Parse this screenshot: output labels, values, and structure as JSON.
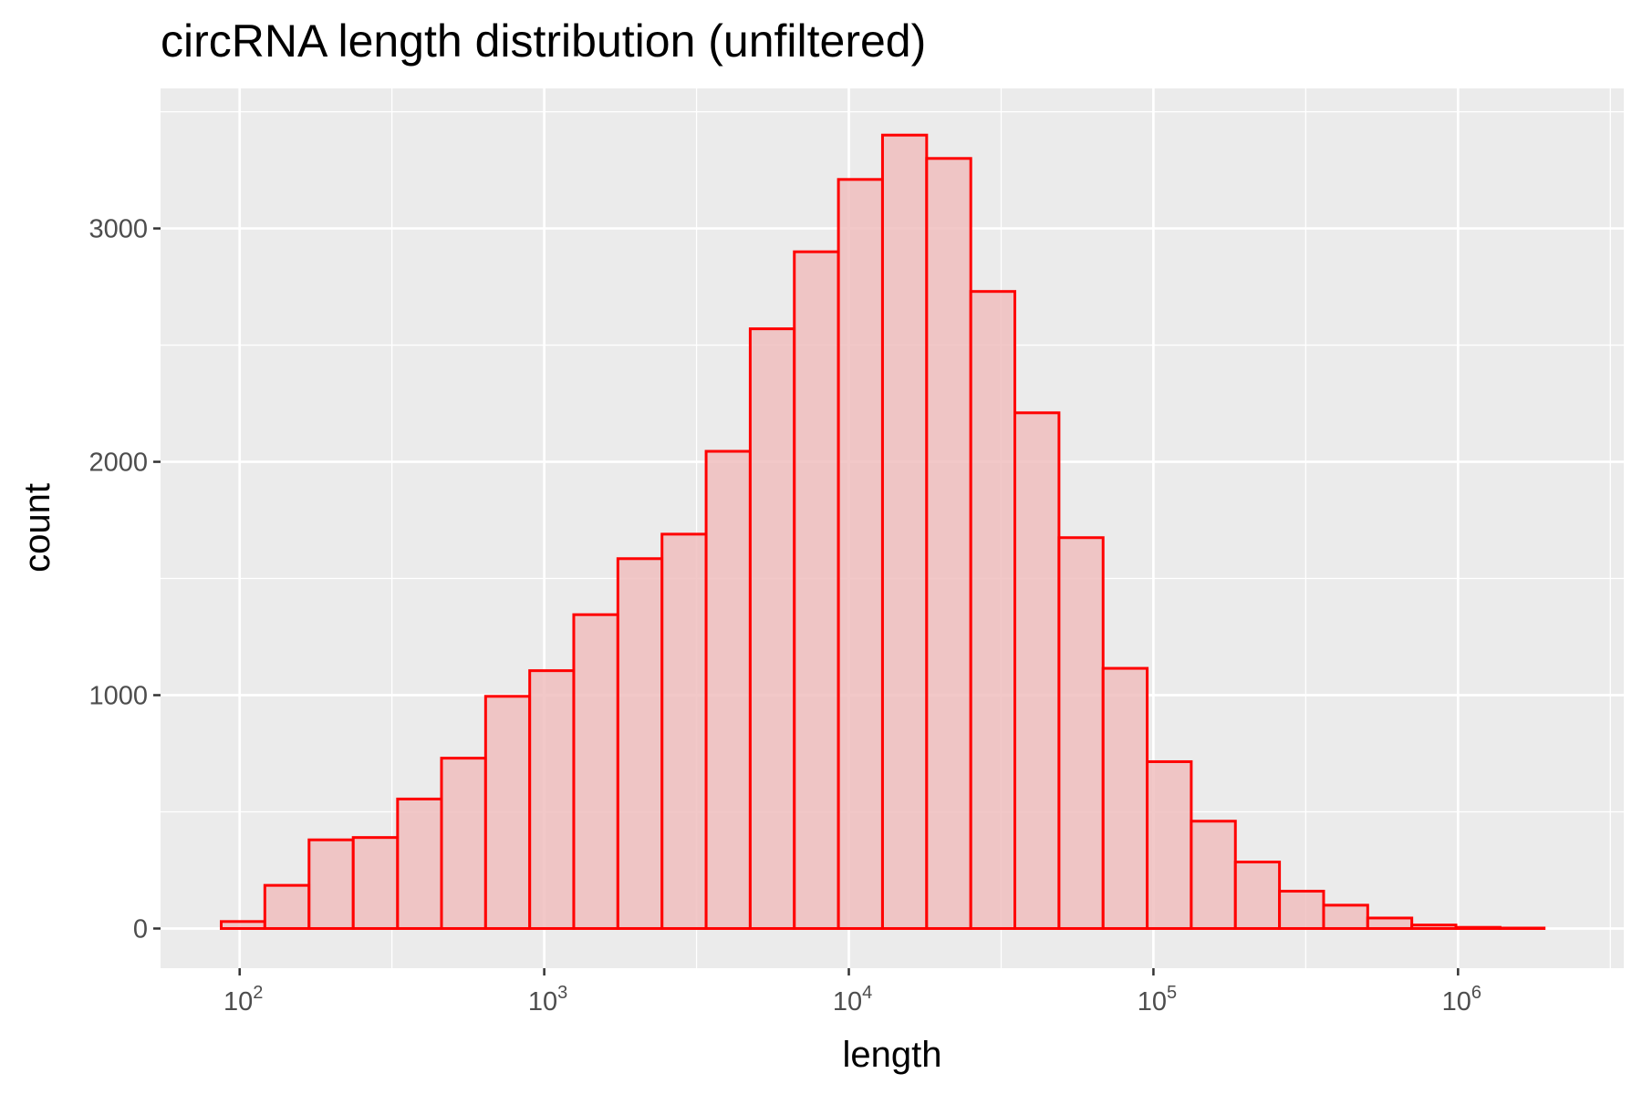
{
  "chart_data": {
    "type": "bar",
    "title": "circRNA length distribution (unfiltered)",
    "xlabel": "length",
    "ylabel": "count",
    "x_scale": "log10",
    "xlim": [
      55,
      3500000
    ],
    "ylim": [
      -170,
      3600
    ],
    "grid": true,
    "fill_color": "#f0bebe",
    "outline_color": "#ff0000",
    "panel_color": "#ebebeb",
    "gridline_color": "#ffffff",
    "x_ticks": [
      {
        "value": 100,
        "base": "10",
        "exp": "2"
      },
      {
        "value": 1000,
        "base": "10",
        "exp": "3"
      },
      {
        "value": 10000,
        "base": "10",
        "exp": "4"
      },
      {
        "value": 100000,
        "base": "10",
        "exp": "5"
      },
      {
        "value": 1000000,
        "base": "10",
        "exp": "6"
      }
    ],
    "y_ticks": [
      {
        "value": 0,
        "label": "0"
      },
      {
        "value": 1000,
        "label": "1000"
      },
      {
        "value": 2000,
        "label": "2000"
      },
      {
        "value": 3000,
        "label": "3000"
      }
    ],
    "bins": [
      {
        "start": 87,
        "end": 121,
        "count": 30
      },
      {
        "start": 121,
        "end": 169,
        "count": 185
      },
      {
        "start": 169,
        "end": 236,
        "count": 380
      },
      {
        "start": 236,
        "end": 330,
        "count": 390
      },
      {
        "start": 330,
        "end": 460,
        "count": 555
      },
      {
        "start": 460,
        "end": 642,
        "count": 730
      },
      {
        "start": 642,
        "end": 896,
        "count": 995
      },
      {
        "start": 896,
        "end": 1250,
        "count": 1105
      },
      {
        "start": 1250,
        "end": 1745,
        "count": 1345
      },
      {
        "start": 1745,
        "end": 2436,
        "count": 1585
      },
      {
        "start": 2436,
        "end": 3400,
        "count": 1690
      },
      {
        "start": 3400,
        "end": 4745,
        "count": 2045
      },
      {
        "start": 4745,
        "end": 6623,
        "count": 2570
      },
      {
        "start": 6623,
        "end": 9244,
        "count": 2900
      },
      {
        "start": 9244,
        "end": 12900,
        "count": 3210
      },
      {
        "start": 12900,
        "end": 18010,
        "count": 3400
      },
      {
        "start": 18010,
        "end": 25140,
        "count": 3300
      },
      {
        "start": 25140,
        "end": 35080,
        "count": 2730
      },
      {
        "start": 35080,
        "end": 48970,
        "count": 2210
      },
      {
        "start": 48970,
        "end": 68350,
        "count": 1675
      },
      {
        "start": 68350,
        "end": 95390,
        "count": 1115
      },
      {
        "start": 95390,
        "end": 133100,
        "count": 715
      },
      {
        "start": 133100,
        "end": 185800,
        "count": 460
      },
      {
        "start": 185800,
        "end": 259300,
        "count": 285
      },
      {
        "start": 259300,
        "end": 362000,
        "count": 160
      },
      {
        "start": 362000,
        "end": 505200,
        "count": 100
      },
      {
        "start": 505200,
        "end": 705100,
        "count": 45
      },
      {
        "start": 705100,
        "end": 984200,
        "count": 15
      },
      {
        "start": 984200,
        "end": 1374000,
        "count": 5
      },
      {
        "start": 1374000,
        "end": 1917000,
        "count": 2
      }
    ]
  }
}
